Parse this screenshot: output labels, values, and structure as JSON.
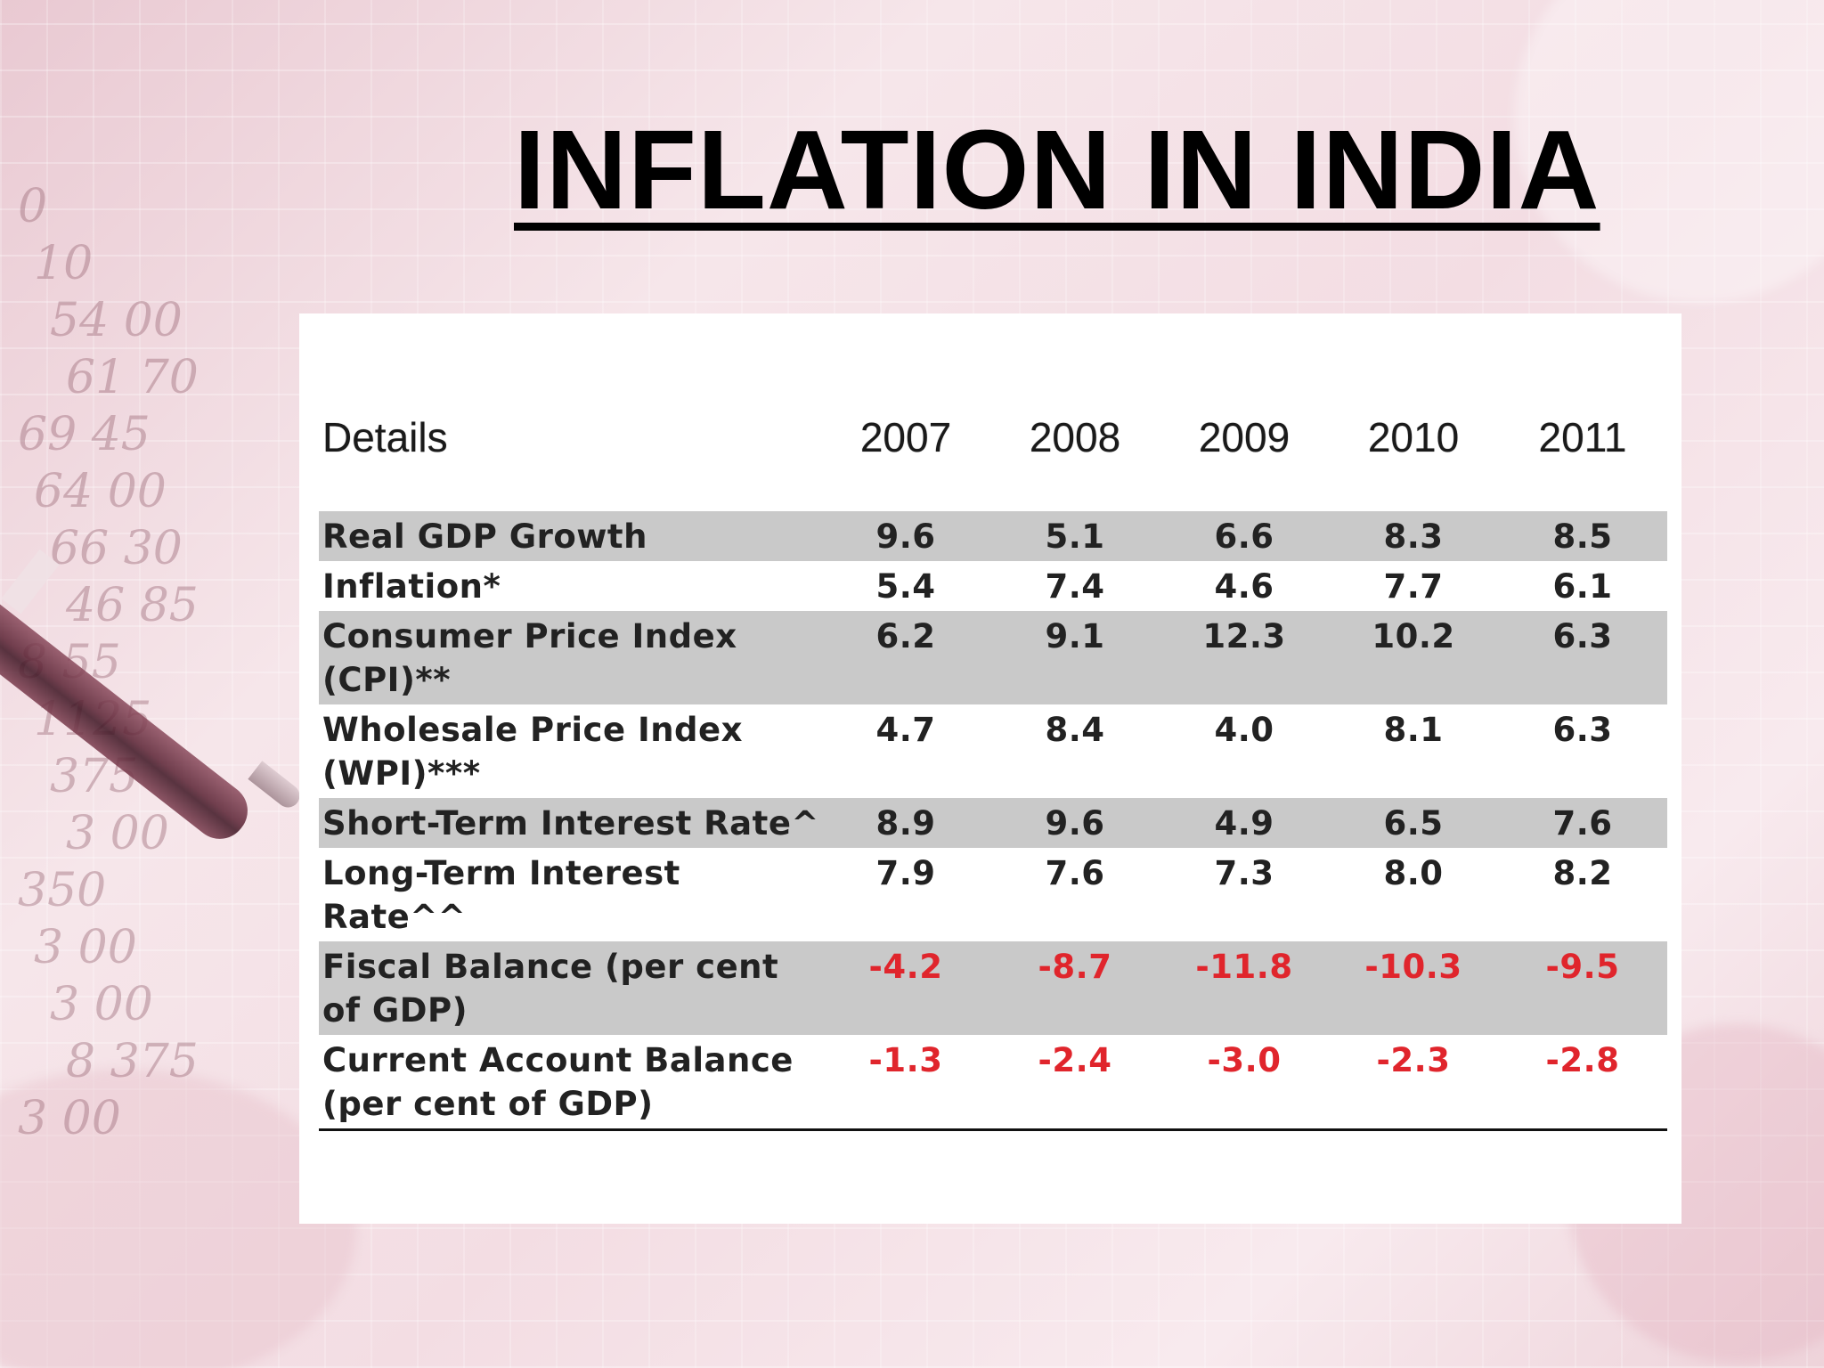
{
  "slide": {
    "title": "INFLATION IN INDIA"
  },
  "background": {
    "numbers": [
      "0",
      "10",
      "54 00",
      "61 70",
      "69 45",
      "64 00",
      "66 30",
      "46 85",
      "8 55",
      "1125",
      "375",
      "3 00",
      "350",
      "3 00",
      "3 00",
      "8 375",
      "3 00"
    ]
  },
  "table": {
    "header": {
      "label": "Details",
      "years": [
        "2007",
        "2008",
        "2009",
        "2010",
        "2011"
      ]
    },
    "rows": [
      {
        "label": "Real GDP Growth",
        "values": [
          "9.6",
          "5.1",
          "6.6",
          "8.3",
          "8.5"
        ],
        "shaded": true,
        "negative": false
      },
      {
        "label": "Inflation*",
        "values": [
          "5.4",
          "7.4",
          "4.6",
          "7.7",
          "6.1"
        ],
        "shaded": false,
        "negative": false
      },
      {
        "label": "Consumer Price Index (CPI)**",
        "values": [
          "6.2",
          "9.1",
          "12.3",
          "10.2",
          "6.3"
        ],
        "shaded": true,
        "negative": false
      },
      {
        "label": "Wholesale Price Index (WPI)***",
        "values": [
          "4.7",
          "8.4",
          "4.0",
          "8.1",
          "6.3"
        ],
        "shaded": false,
        "negative": false
      },
      {
        "label": "Short-Term Interest Rate^",
        "values": [
          "8.9",
          "9.6",
          "4.9",
          "6.5",
          "7.6"
        ],
        "shaded": true,
        "negative": false
      },
      {
        "label": "Long-Term Interest Rate^^",
        "values": [
          "7.9",
          "7.6",
          "7.3",
          "8.0",
          "8.2"
        ],
        "shaded": false,
        "negative": false
      },
      {
        "label": "Fiscal Balance (per cent of GDP)",
        "values": [
          "-4.2",
          "-8.7",
          "-11.8",
          "-10.3",
          "-9.5"
        ],
        "shaded": true,
        "negative": true
      },
      {
        "label": "Current Account Balance (per cent of GDP)",
        "values": [
          "-1.3",
          "-2.4",
          "-3.0",
          "-2.3",
          "-2.8"
        ],
        "shaded": false,
        "negative": true
      }
    ]
  },
  "colors": {
    "negative": "#e0252c",
    "shade": "#c9c9c9",
    "text": "#222222"
  }
}
